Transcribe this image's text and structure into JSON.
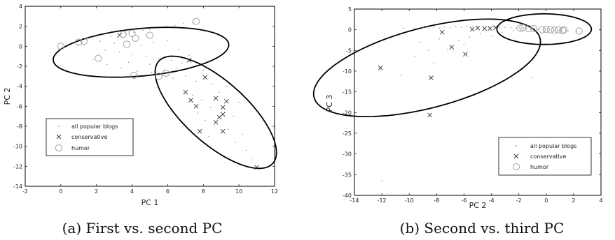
{
  "chart_data": [
    {
      "type": "scatter",
      "caption": "(a) First vs. second PC",
      "xlabel": "PC 1",
      "ylabel": "PC 2",
      "xlim": [
        -2,
        12
      ],
      "ylim": [
        -14,
        4
      ],
      "xticks": [
        -2,
        0,
        2,
        4,
        6,
        8,
        10,
        12
      ],
      "yticks": [
        -14,
        -12,
        -10,
        -8,
        -6,
        -4,
        -2,
        0,
        2,
        4
      ],
      "legend_position": "bottom-left",
      "series": [
        {
          "name": "all popular blogs",
          "marker": "dot",
          "points": [
            [
              1.0,
              0.2
            ],
            [
              1.5,
              0.8
            ],
            [
              2.2,
              0.5
            ],
            [
              2.8,
              1.0
            ],
            [
              3.2,
              0.9
            ],
            [
              3.6,
              1.3
            ],
            [
              4.1,
              1.4
            ],
            [
              4.6,
              1.6
            ],
            [
              5.0,
              1.7
            ],
            [
              5.4,
              1.8
            ],
            [
              5.9,
              2.0
            ],
            [
              6.4,
              2.1
            ],
            [
              6.9,
              2.3
            ],
            [
              7.4,
              2.4
            ],
            [
              2.5,
              -0.4
            ],
            [
              3.3,
              -0.6
            ],
            [
              4.0,
              -0.8
            ],
            [
              4.8,
              -1.0
            ],
            [
              5.5,
              -1.2
            ],
            [
              6.2,
              -1.4
            ],
            [
              6.8,
              -1.7
            ],
            [
              1.8,
              -1.3
            ],
            [
              2.6,
              -1.8
            ],
            [
              3.4,
              -2.2
            ],
            [
              4.3,
              -2.5
            ],
            [
              5.1,
              -2.6
            ],
            [
              5.8,
              -2.4
            ],
            [
              6.5,
              -2.2
            ],
            [
              7.0,
              -3.0
            ],
            [
              7.6,
              -3.5
            ],
            [
              8.0,
              -2.4
            ],
            [
              8.5,
              -3.8
            ],
            [
              8.9,
              -4.6
            ],
            [
              9.3,
              -4.0
            ],
            [
              7.4,
              -4.9
            ],
            [
              7.9,
              -5.4
            ],
            [
              8.4,
              -6.1
            ],
            [
              9.2,
              -6.6
            ],
            [
              9.7,
              -7.0
            ],
            [
              10.0,
              -5.6
            ],
            [
              8.1,
              -7.4
            ],
            [
              8.6,
              -8.0
            ],
            [
              9.4,
              -8.3
            ],
            [
              10.2,
              -8.8
            ],
            [
              9.8,
              -9.6
            ],
            [
              10.4,
              -10.4
            ],
            [
              10.7,
              -11.2
            ],
            [
              7.7,
              -6.7
            ],
            [
              8.3,
              -9.0
            ],
            [
              6.3,
              -3.2
            ],
            [
              3.0,
              0.3
            ],
            [
              4.5,
              0.1
            ],
            [
              5.2,
              0.4
            ],
            [
              6.0,
              0.6
            ],
            [
              6.6,
              -0.3
            ],
            [
              7.2,
              -0.9
            ],
            [
              3.8,
              -1.6
            ],
            [
              5.0,
              -1.8
            ]
          ]
        },
        {
          "name": "conservative",
          "marker": "x",
          "points": [
            [
              3.3,
              1.1
            ],
            [
              7.2,
              -1.4
            ],
            [
              8.1,
              -3.1
            ],
            [
              7.0,
              -4.6
            ],
            [
              7.3,
              -5.4
            ],
            [
              7.6,
              -6.0
            ],
            [
              8.7,
              -5.2
            ],
            [
              9.1,
              -6.1
            ],
            [
              9.3,
              -5.5
            ],
            [
              9.1,
              -6.8
            ],
            [
              8.9,
              -7.1
            ],
            [
              8.7,
              -7.6
            ],
            [
              7.8,
              -8.5
            ],
            [
              9.1,
              -8.5
            ],
            [
              11.0,
              -12.1
            ]
          ]
        },
        {
          "name": "humor",
          "marker": "circle",
          "points": [
            [
              0.0,
              0.0
            ],
            [
              1.0,
              0.4
            ],
            [
              1.3,
              0.5
            ],
            [
              2.1,
              -1.2
            ],
            [
              3.5,
              1.2
            ],
            [
              3.7,
              0.2
            ],
            [
              4.0,
              1.3
            ],
            [
              4.2,
              0.8
            ],
            [
              5.0,
              1.1
            ],
            [
              4.1,
              -2.9
            ],
            [
              5.5,
              -3.0
            ],
            [
              5.9,
              -2.7
            ],
            [
              7.6,
              2.5
            ]
          ]
        }
      ],
      "ellipses": [
        {
          "center": [
            4.5,
            -0.6
          ],
          "semi_axes": [
            5.0,
            2.35
          ],
          "angle_deg": 11
        },
        {
          "center": [
            8.7,
            -6.6
          ],
          "semi_axes": [
            2.15,
            6.2
          ],
          "angle_deg": 27
        }
      ]
    },
    {
      "type": "scatter",
      "caption": "(b) Second vs. third PC",
      "xlabel": "PC 2",
      "ylabel": "PC 3",
      "xlim": [
        -14,
        4
      ],
      "ylim": [
        -40,
        5
      ],
      "xticks": [
        -14,
        -12,
        -10,
        -8,
        -6,
        -4,
        -2,
        0,
        2,
        4
      ],
      "yticks": [
        -40,
        -35,
        -30,
        -25,
        -20,
        -15,
        -10,
        -5,
        0,
        5
      ],
      "legend_position": "bottom-right",
      "series": [
        {
          "name": "all popular blogs",
          "marker": "dot",
          "points": [
            [
              -12.0,
              -36.5
            ],
            [
              -10.4,
              0.4
            ],
            [
              -9.6,
              0.3
            ],
            [
              -9.0,
              0.5
            ],
            [
              -8.6,
              0.3
            ],
            [
              -8.2,
              0.6
            ],
            [
              -7.8,
              0.4
            ],
            [
              -7.4,
              0.7
            ],
            [
              -7.0,
              0.5
            ],
            [
              -6.6,
              0.8
            ],
            [
              -6.2,
              0.6
            ],
            [
              -5.8,
              0.9
            ],
            [
              -5.4,
              0.7
            ],
            [
              -5.0,
              0.9
            ],
            [
              -4.6,
              0.8
            ],
            [
              -4.2,
              0.8
            ],
            [
              -3.8,
              0.7
            ],
            [
              -3.4,
              0.6
            ],
            [
              -3.0,
              0.6
            ],
            [
              -2.6,
              0.5
            ],
            [
              -2.2,
              0.4
            ],
            [
              -1.8,
              0.4
            ],
            [
              -1.4,
              0.3
            ],
            [
              -1.0,
              0.2
            ],
            [
              -0.6,
              0.1
            ],
            [
              -0.2,
              0.0
            ],
            [
              0.2,
              -0.1
            ],
            [
              0.6,
              -0.2
            ],
            [
              1.0,
              -0.2
            ],
            [
              1.6,
              -0.3
            ],
            [
              2.2,
              -0.4
            ],
            [
              -9.2,
              -3.0
            ],
            [
              -8.6,
              -5.0
            ],
            [
              -7.8,
              -2.2
            ],
            [
              -8.2,
              -8.0
            ],
            [
              -7.2,
              -4.8
            ],
            [
              -6.4,
              -2.6
            ],
            [
              -5.6,
              -1.8
            ],
            [
              -4.8,
              -1.0
            ],
            [
              -4.0,
              -1.4
            ],
            [
              -9.6,
              -6.5
            ],
            [
              -10.6,
              -11.0
            ],
            [
              -6.0,
              -3.6
            ],
            [
              -1.0,
              -11.5
            ],
            [
              -3.2,
              -0.6
            ],
            [
              -2.4,
              -0.2
            ]
          ]
        },
        {
          "name": "conservative",
          "marker": "x",
          "points": [
            [
              -12.1,
              -9.2
            ],
            [
              -8.4,
              -11.6
            ],
            [
              -8.5,
              -20.6
            ],
            [
              -6.9,
              -4.2
            ],
            [
              -7.6,
              -0.6
            ],
            [
              -5.9,
              -5.9
            ],
            [
              -5.4,
              0.1
            ],
            [
              -5.0,
              0.4
            ],
            [
              -4.5,
              0.3
            ],
            [
              -4.1,
              0.3
            ],
            [
              -3.7,
              0.5
            ]
          ]
        },
        {
          "name": "humor",
          "marker": "circle",
          "points": [
            [
              -1.9,
              0.4
            ],
            [
              -1.7,
              0.5
            ],
            [
              -1.3,
              0.3
            ],
            [
              -0.9,
              0.3
            ],
            [
              -0.3,
              0.0
            ],
            [
              0.0,
              0.1
            ],
            [
              0.3,
              0.0
            ],
            [
              0.6,
              -0.1
            ],
            [
              0.9,
              0.0
            ],
            [
              1.2,
              -0.2
            ],
            [
              1.3,
              0.0
            ],
            [
              2.4,
              -0.3
            ]
          ]
        }
      ],
      "ellipses": [
        {
          "center": [
            -8.7,
            -9.2
          ],
          "semi_axes": [
            6.4,
            12.9
          ],
          "angle_deg": -28
        },
        {
          "center": [
            -0.15,
            0.15
          ],
          "semi_axes": [
            3.45,
            3.7
          ],
          "angle_deg": 0
        }
      ]
    }
  ]
}
